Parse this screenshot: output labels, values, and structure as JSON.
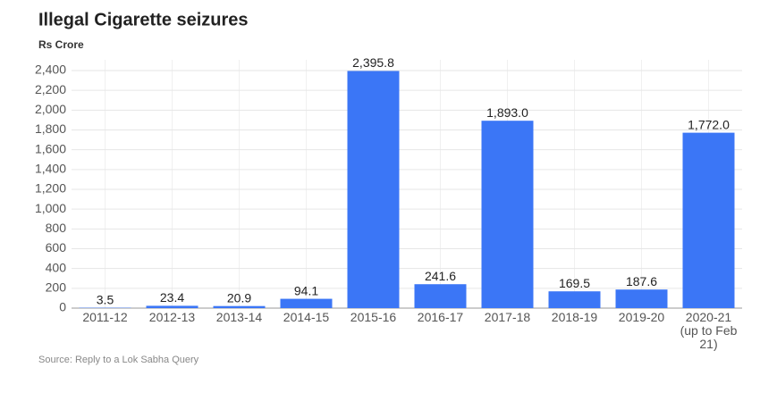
{
  "chart_data": {
    "type": "bar",
    "title": "Illegal Cigarette seizures",
    "subtitle": "Rs Crore",
    "source": "Source: Reply to a Lok Sabha Query",
    "categories": [
      "2011-12",
      "2012-13",
      "2013-14",
      "2014-15",
      "2015-16",
      "2016-17",
      "2017-18",
      "2018-19",
      "2019-20",
      "2020-21 (up to Feb 21)"
    ],
    "values": [
      3.5,
      23.4,
      20.9,
      94.1,
      2395.8,
      241.6,
      1893.0,
      169.5,
      187.6,
      1772.0
    ],
    "value_labels": [
      "3.5",
      "23.4",
      "20.9",
      "94.1",
      "2,395.8",
      "241.6",
      "1,893.0",
      "169.5",
      "187.6",
      "1,772.0"
    ],
    "color": "#3b76f6",
    "ylim": [
      0,
      2400
    ],
    "yticks": [
      0,
      200,
      400,
      600,
      800,
      {
        "value": 1000,
        "label": "1,000"
      },
      {
        "value": 1200,
        "label": "1,200"
      },
      {
        "value": 1400,
        "label": "1,400"
      },
      {
        "value": 1600,
        "label": "1,600"
      },
      {
        "value": 1800,
        "label": "1,800"
      },
      {
        "value": 2000,
        "label": "2,000"
      },
      {
        "value": 2200,
        "label": "2,200"
      },
      {
        "value": 2400,
        "label": "2,400"
      }
    ],
    "grid": true
  }
}
